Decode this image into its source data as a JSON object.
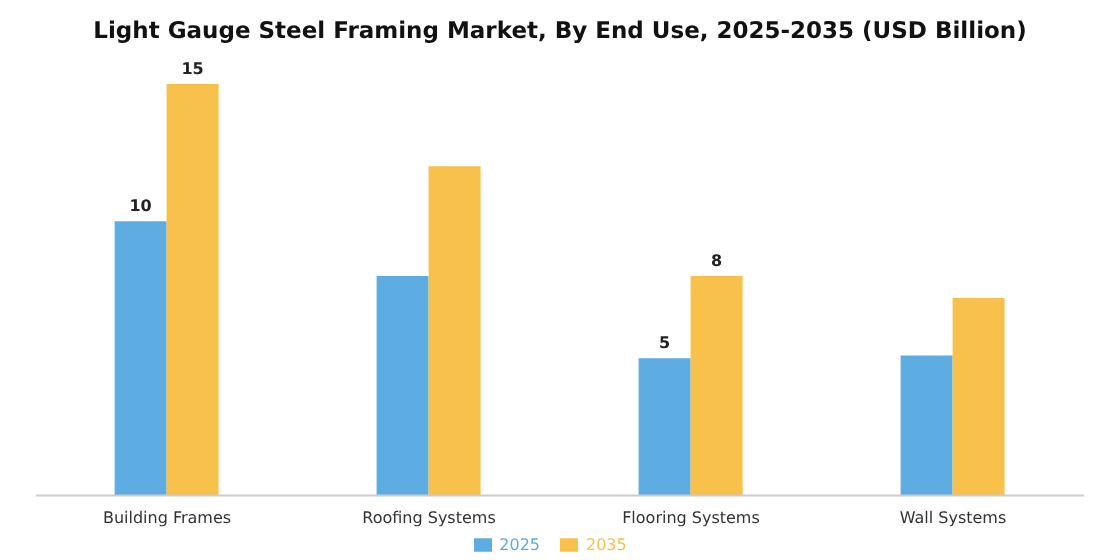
{
  "chart_data": {
    "type": "bar",
    "title": "Light Gauge Steel Framing Market, By End Use, 2025-2035 (USD Billion)",
    "categories": [
      "Building Frames",
      "Roofing Systems",
      "Flooring Systems",
      "Wall Systems"
    ],
    "series": [
      {
        "name": "2025",
        "color": "#5dade2",
        "values": [
          10,
          8,
          5,
          5.1
        ],
        "value_labels": [
          "10",
          null,
          "5",
          null
        ]
      },
      {
        "name": "2035",
        "color": "#f7c14c",
        "values": [
          15,
          12,
          8,
          7.2
        ],
        "value_labels": [
          "15",
          null,
          "8",
          null
        ]
      }
    ],
    "legend": "bottom",
    "grid": false
  }
}
